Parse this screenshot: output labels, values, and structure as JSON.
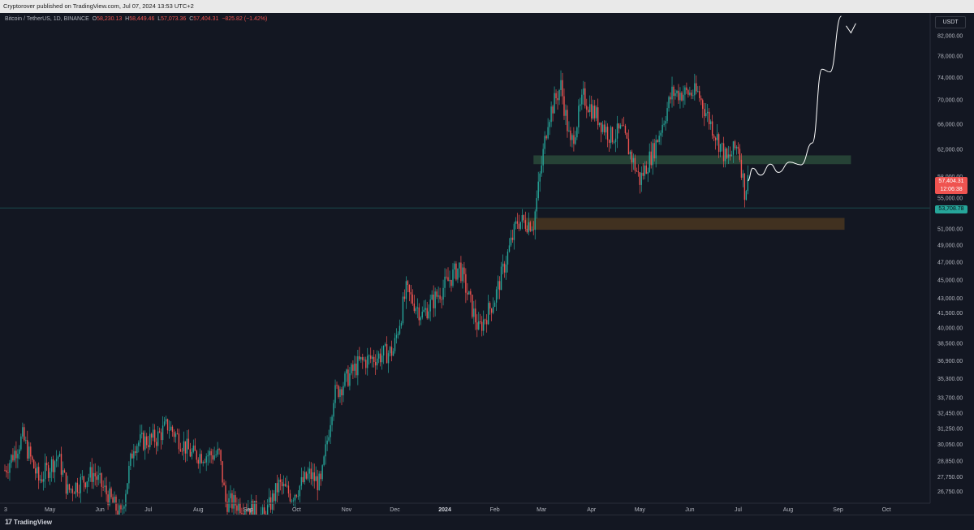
{
  "publish_line": "Cryptorover published on TradingView.com, Jul 07, 2024 13:53 UTC+2",
  "header": {
    "symbol": "Bitcoin / TetherUS, 1D, BINANCE",
    "open_label": "O",
    "open": "58,230.13",
    "high_label": "H",
    "high": "58,449.46",
    "low_label": "L",
    "low": "57,073.36",
    "close_label": "C",
    "close": "57,404.31",
    "change": "−825.82 (−1.42%)"
  },
  "price_scale": {
    "currency": "USDT",
    "last_price": "57,404.31",
    "countdown": "12:06:38",
    "horizontal_line_price": "53,708.78"
  },
  "footer": {
    "brand": "TradingView"
  },
  "colors": {
    "up": "#26a69a",
    "down": "#ef5350",
    "background": "#131722",
    "projection": "#ffffff",
    "resistance_zone": "#2a4a3a",
    "support_zone": "#4a3620"
  },
  "chart_data": {
    "type": "candlestick",
    "title": "",
    "interval": "1D",
    "y_scale": "log",
    "ylim": [
      26000,
      86000
    ],
    "y_ticks": [
      82000,
      78000,
      74000,
      70000,
      66000,
      62000,
      58000,
      55000,
      51000,
      49000,
      47000,
      45000,
      43000,
      41500,
      40000,
      38500,
      36900,
      35300,
      33700,
      32450,
      31250,
      30050,
      28850,
      27750,
      26750
    ],
    "y_tick_labels": [
      "82,000.00",
      "78,000.00",
      "74,000.00",
      "70,000.00",
      "66,000.00",
      "62,000.00",
      "58,000.00",
      "55,000.00",
      "51,000.00",
      "49,000.00",
      "47,000.00",
      "45,000.00",
      "43,000.00",
      "41,500.00",
      "40,000.00",
      "38,500.00",
      "36,900.00",
      "35,300.00",
      "33,700.00",
      "32,450.00",
      "31,250.00",
      "30,050.00",
      "28,850.00",
      "27,750.00",
      "26,750.00"
    ],
    "x_ticks": [
      "3",
      "May",
      "Jun",
      "Jul",
      "Aug",
      "Sep",
      "Oct",
      "Nov",
      "Dec",
      "2024",
      "Feb",
      "Mar",
      "Apr",
      "May",
      "Jun",
      "Jul",
      "Aug",
      "Sep",
      "Oct"
    ],
    "x_range": [
      "2023-04-03",
      "2024-10-08"
    ],
    "x_tick_dates": [
      "2023-04-03",
      "2023-05-01",
      "2023-06-01",
      "2023-07-01",
      "2023-08-01",
      "2023-09-01",
      "2023-10-01",
      "2023-11-01",
      "2023-12-01",
      "2024-01-01",
      "2024-02-01",
      "2024-03-01",
      "2024-04-01",
      "2024-05-01",
      "2024-06-01",
      "2024-07-01",
      "2024-08-01",
      "2024-09-01",
      "2024-10-01"
    ],
    "price_path": [
      [
        "2023-04-03",
        28200
      ],
      [
        "2023-04-14",
        30600
      ],
      [
        "2023-04-24",
        27500
      ],
      [
        "2023-05-06",
        29200
      ],
      [
        "2023-05-12",
        26800
      ],
      [
        "2023-05-28",
        28000
      ],
      [
        "2023-06-14",
        25200
      ],
      [
        "2023-06-22",
        30100
      ],
      [
        "2023-07-06",
        30500
      ],
      [
        "2023-07-13",
        31500
      ],
      [
        "2023-07-28",
        29300
      ],
      [
        "2023-08-14",
        29300
      ],
      [
        "2023-08-18",
        26100
      ],
      [
        "2023-09-01",
        25800
      ],
      [
        "2023-09-11",
        25100
      ],
      [
        "2023-09-20",
        27200
      ],
      [
        "2023-09-28",
        26500
      ],
      [
        "2023-10-09",
        27900
      ],
      [
        "2023-10-16",
        27200
      ],
      [
        "2023-10-24",
        33900
      ],
      [
        "2023-11-09",
        36700
      ],
      [
        "2023-11-30",
        37800
      ],
      [
        "2023-12-08",
        43800
      ],
      [
        "2023-12-18",
        41300
      ],
      [
        "2024-01-10",
        46500
      ],
      [
        "2024-01-22",
        39800
      ],
      [
        "2024-02-01",
        43000
      ],
      [
        "2024-02-15",
        52000
      ],
      [
        "2024-02-25",
        51700
      ],
      [
        "2024-03-05",
        67000
      ],
      [
        "2024-03-13",
        72500
      ],
      [
        "2024-03-19",
        62500
      ],
      [
        "2024-03-27",
        70500
      ],
      [
        "2024-04-13",
        64000
      ],
      [
        "2024-04-20",
        64900
      ],
      [
        "2024-05-01",
        57500
      ],
      [
        "2024-05-10",
        62200
      ],
      [
        "2024-05-21",
        71200
      ],
      [
        "2024-06-06",
        71200
      ],
      [
        "2024-06-14",
        66100
      ],
      [
        "2024-06-24",
        60300
      ],
      [
        "2024-07-01",
        62800
      ],
      [
        "2024-07-05",
        56000
      ],
      [
        "2024-07-07",
        57404
      ]
    ],
    "projection_path": [
      [
        "2024-07-07",
        57404
      ],
      [
        "2024-07-10",
        59200
      ],
      [
        "2024-07-15",
        58200
      ],
      [
        "2024-07-21",
        59800
      ],
      [
        "2024-07-26",
        58600
      ],
      [
        "2024-08-02",
        60100
      ],
      [
        "2024-08-09",
        59700
      ],
      [
        "2024-08-16",
        63000
      ],
      [
        "2024-08-22",
        75500
      ],
      [
        "2024-08-27",
        75000
      ],
      [
        "2024-09-03",
        86000
      ]
    ],
    "zones": [
      {
        "name": "resistance",
        "y_low": 59800,
        "y_high": 61100,
        "x_start": "2024-02-25",
        "x_end": "2024-09-09"
      },
      {
        "name": "support",
        "y_low": 50900,
        "y_high": 52400,
        "x_start": "2024-02-20",
        "x_end": "2024-09-05"
      }
    ],
    "horizontal_lines": [
      {
        "y": 53708.78
      }
    ]
  }
}
